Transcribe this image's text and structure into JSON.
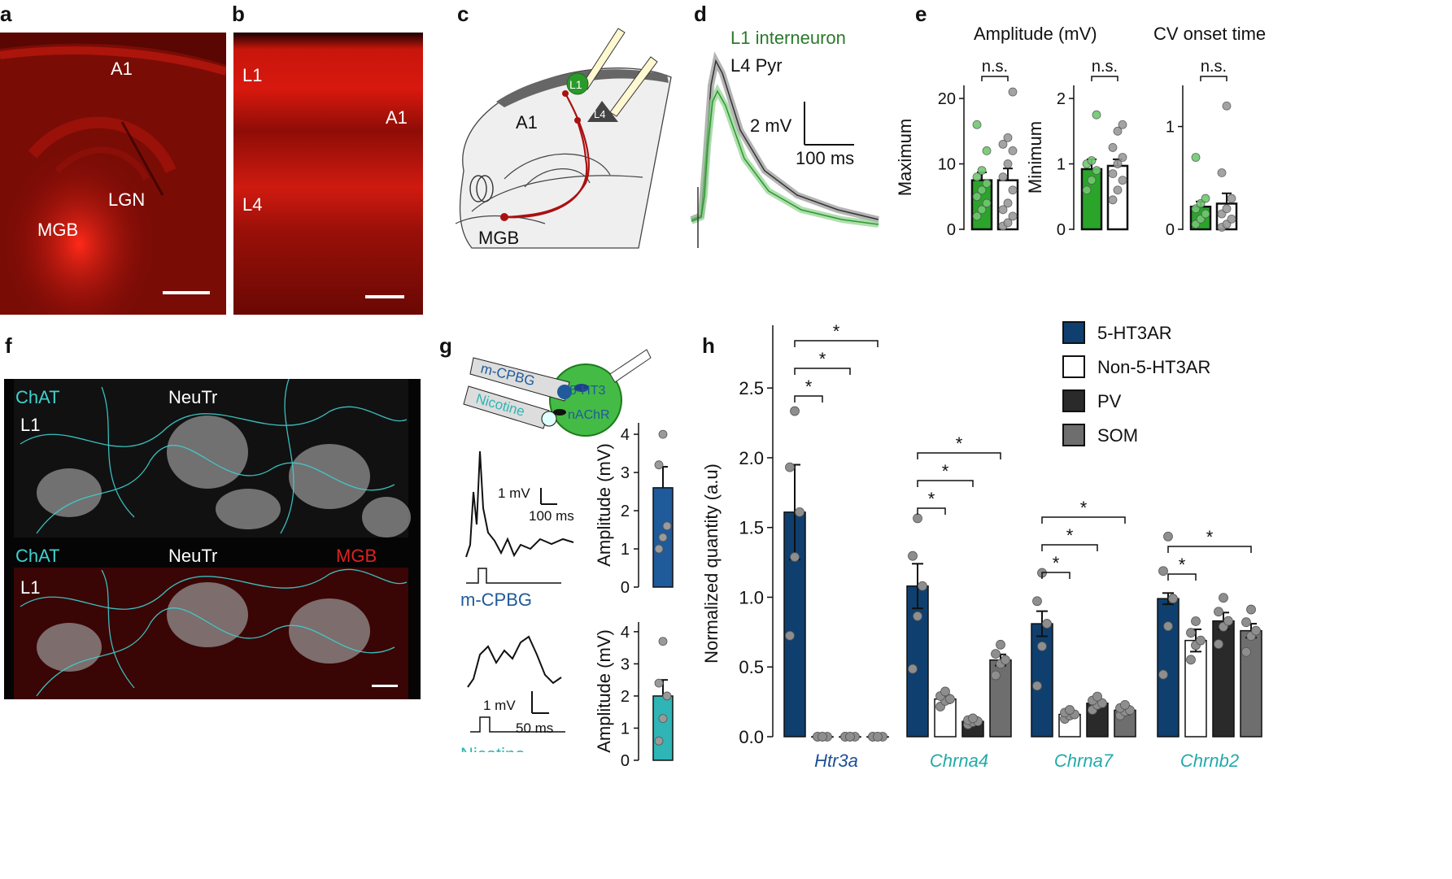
{
  "panel_letters": [
    "a",
    "b",
    "c",
    "d",
    "e",
    "f",
    "g",
    "h"
  ],
  "panel_a": {
    "labels": [
      "A1",
      "LGN",
      "MGB"
    ]
  },
  "panel_b": {
    "labels": [
      "L1",
      "A1",
      "L4"
    ]
  },
  "panel_c": {
    "labels": [
      "A1",
      "L1",
      "L4",
      "MGB"
    ]
  },
  "panel_d": {
    "legend": [
      "L1 interneuron",
      "L4 Pyr"
    ],
    "scalebar_y": "2 mV",
    "scalebar_x": "100 ms",
    "colors": {
      "l1": "#2a9a2a",
      "l4": "#555555"
    }
  },
  "panel_e": {
    "titles": [
      "Amplitude (mV)",
      "CV onset time"
    ],
    "ylabels": [
      "Maximum",
      "Minimum"
    ],
    "sig": "n.s."
  },
  "panel_f": {
    "top_labels": [
      "ChAT",
      "NeuTr",
      "L1"
    ],
    "bottom_labels": [
      "ChAT",
      "NeuTr",
      "MGB",
      "L1"
    ],
    "colors": {
      "chat": "#3fd0d0",
      "mgb": "#e02020"
    }
  },
  "panel_g": {
    "pipettes": [
      "m-CPBG",
      "Nicotine"
    ],
    "receptors": [
      "5-HT3",
      "nAChR"
    ],
    "scale1": [
      "1 mV",
      "100 ms"
    ],
    "scale2": [
      "1 mV",
      "50 ms"
    ],
    "stim_labels": [
      "m-CPBG",
      "Nicotine"
    ],
    "ylabel": "Amplitude (mV)",
    "colors": {
      "mcpbg": "#1f5a9a",
      "nicotine": "#2fb5b5"
    }
  },
  "panel_h": {
    "legend": [
      "5-HT3AR",
      "Non-5-HT3AR",
      "PV",
      "SOM"
    ],
    "colors": [
      "#0f3f6e",
      "#ffffff",
      "#2a2a2a",
      "#6e6e6e"
    ]
  },
  "chart_data": [
    {
      "type": "bar",
      "title": "Amplitude (mV)",
      "ylabel": "Maximum",
      "ylim": [
        0,
        22
      ],
      "yticks": [
        0,
        10,
        20
      ],
      "categories": [
        "L1 interneuron",
        "L4 Pyr"
      ],
      "values": [
        7.5,
        7.5
      ],
      "errors": [
        1.2,
        1.8
      ],
      "points": [
        [
          2,
          3,
          4,
          5,
          6,
          7,
          8,
          9,
          12,
          16
        ],
        [
          0.5,
          1,
          2,
          3,
          4,
          6,
          8,
          10,
          12,
          13,
          14,
          21
        ]
      ],
      "annotation": "n.s."
    },
    {
      "type": "bar",
      "title": "",
      "ylabel": "Minimum",
      "ylim": [
        0,
        2.2
      ],
      "yticks": [
        0,
        1,
        2
      ],
      "categories": [
        "L1 interneuron",
        "L4 Pyr"
      ],
      "values": [
        0.92,
        0.97
      ],
      "errors": [
        0.15,
        0.1
      ],
      "points": [
        [
          0.6,
          0.75,
          0.9,
          1.0,
          1.05,
          1.75
        ],
        [
          0.45,
          0.6,
          0.75,
          0.85,
          1.0,
          1.1,
          1.25,
          1.5,
          1.6
        ]
      ],
      "annotation": "n.s."
    },
    {
      "type": "bar",
      "title": "CV onset time",
      "ylabel": "",
      "ylim": [
        0,
        1.4
      ],
      "yticks": [
        0,
        1
      ],
      "categories": [
        "L1 interneuron",
        "L4 Pyr"
      ],
      "values": [
        0.22,
        0.25
      ],
      "errors": [
        0.05,
        0.1
      ],
      "points": [
        [
          0.05,
          0.1,
          0.15,
          0.2,
          0.25,
          0.3,
          0.7
        ],
        [
          0.02,
          0.05,
          0.1,
          0.15,
          0.2,
          0.3,
          0.55,
          1.2
        ]
      ],
      "annotation": "n.s."
    },
    {
      "type": "bar",
      "ylabel": "Amplitude (mV)",
      "ylim": [
        0,
        4.3
      ],
      "yticks": [
        0,
        1,
        2,
        3,
        4
      ],
      "categories": [
        "m-CPBG"
      ],
      "values": [
        2.6
      ],
      "errors": [
        0.55
      ],
      "points": [
        [
          1.0,
          1.3,
          1.6,
          3.2,
          4.0
        ]
      ]
    },
    {
      "type": "bar",
      "ylabel": "Amplitude (mV)",
      "ylim": [
        0,
        4.3
      ],
      "yticks": [
        0,
        1,
        2,
        3,
        4
      ],
      "categories": [
        "Nicotine"
      ],
      "values": [
        2.0
      ],
      "errors": [
        0.5
      ],
      "points": [
        [
          0.6,
          1.3,
          2.0,
          2.4,
          3.7
        ]
      ]
    },
    {
      "type": "bar",
      "ylabel": "Normalized quantity (a.u)",
      "ylim": [
        0,
        2.95
      ],
      "yticks": [
        "0.0",
        "0.5",
        "1.0",
        "1.5",
        "2.0",
        "2.5"
      ],
      "categories": [
        "Htr3a",
        "Chrna4",
        "Chrna7",
        "Chrnb2"
      ],
      "series": [
        {
          "name": "5-HT3AR",
          "values": [
            1.61,
            1.08,
            0.81,
            0.99
          ],
          "errors": [
            0.34,
            0.16,
            0.09,
            0.04
          ]
        },
        {
          "name": "Non-5-HT3AR",
          "values": [
            0.0,
            0.27,
            0.16,
            0.69
          ],
          "errors": [
            0.0,
            0.03,
            0.02,
            0.08
          ]
        },
        {
          "name": "PV",
          "values": [
            0.0,
            0.11,
            0.24,
            0.83
          ],
          "errors": [
            0.0,
            0.03,
            0.02,
            0.06
          ]
        },
        {
          "name": "SOM",
          "values": [
            0.0,
            0.55,
            0.19,
            0.76
          ],
          "errors": [
            0.0,
            0.04,
            0.03,
            0.05
          ]
        }
      ],
      "significance": "*",
      "category_colors": [
        "#1f4f96",
        "#22aaaa",
        "#22aaaa",
        "#22aaaa"
      ]
    }
  ]
}
